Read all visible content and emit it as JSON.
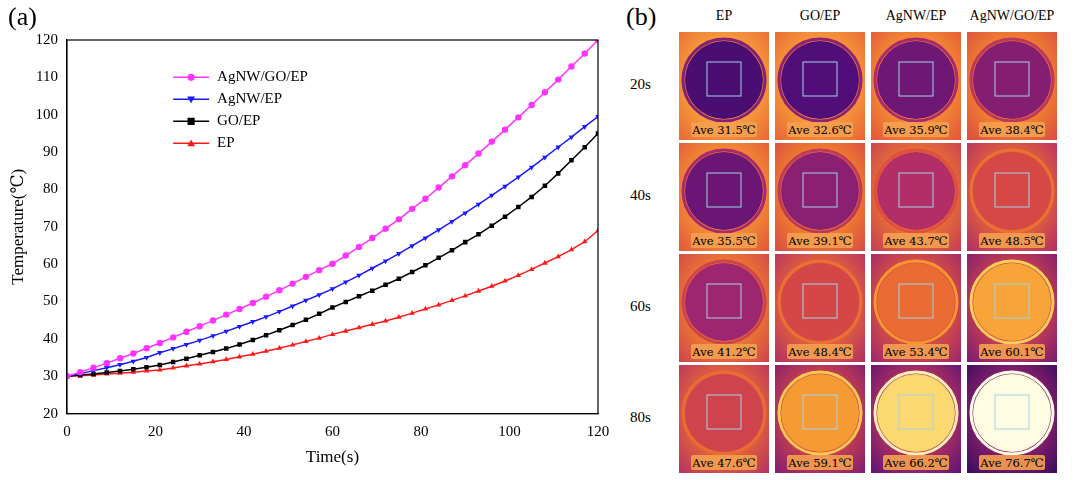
{
  "chart_data": {
    "type": "line",
    "panel": "(a)",
    "x_label": "Time(s)",
    "y_label": "Temperature(℃)",
    "x": [
      0,
      3,
      6,
      9,
      12,
      15,
      18,
      21,
      24,
      27,
      30,
      33,
      36,
      39,
      42,
      45,
      48,
      51,
      54,
      57,
      60,
      63,
      66,
      69,
      72,
      75,
      78,
      81,
      84,
      87,
      90,
      93,
      96,
      99,
      102,
      105,
      108,
      111,
      114,
      117,
      120
    ],
    "xlim": [
      0,
      120
    ],
    "xticks": [
      0,
      20,
      40,
      60,
      80,
      100,
      120
    ],
    "ylim": [
      20,
      120
    ],
    "yticks": [
      20,
      30,
      40,
      50,
      60,
      70,
      80,
      90,
      100,
      110,
      120
    ],
    "grid": false,
    "legend": "upper left",
    "series": [
      {
        "name": "AgNW/GO/EP",
        "color": "#ff33ff",
        "marker": "circle",
        "line_style": "solid",
        "values": [
          30.0,
          31.1,
          32.3,
          33.5,
          34.8,
          36.1,
          37.5,
          38.9,
          40.4,
          41.9,
          43.4,
          44.9,
          46.5,
          48.0,
          49.6,
          51.3,
          53.0,
          54.8,
          56.6,
          58.4,
          60.1,
          62.3,
          64.6,
          67.0,
          69.5,
          72.0,
          74.8,
          77.5,
          80.5,
          83.5,
          86.5,
          89.6,
          92.8,
          96.0,
          99.3,
          102.6,
          106.0,
          109.4,
          112.9,
          116.4,
          120.0
        ]
      },
      {
        "name": "AgNW/EP",
        "color": "#1a1aff",
        "marker": "triangle_down",
        "line_style": "solid",
        "values": [
          30.0,
          30.7,
          31.5,
          32.3,
          33.1,
          34.0,
          35.0,
          36.3,
          37.4,
          38.5,
          39.6,
          40.8,
          42.0,
          43.3,
          44.6,
          45.9,
          47.3,
          48.8,
          50.3,
          51.8,
          53.4,
          55.2,
          57.0,
          58.9,
          60.8,
          62.8,
          64.9,
          67.0,
          69.2,
          71.4,
          73.7,
          76.0,
          78.4,
          80.8,
          83.3,
          85.9,
          88.6,
          91.3,
          94.0,
          96.8,
          99.5
        ]
      },
      {
        "name": "GO/EP",
        "color": "#000000",
        "marker": "square",
        "line_style": "solid",
        "values": [
          30.0,
          30.3,
          30.6,
          31.0,
          31.4,
          31.9,
          32.4,
          33.0,
          33.8,
          34.7,
          35.6,
          36.5,
          37.4,
          38.5,
          39.7,
          41.0,
          42.3,
          43.7,
          45.1,
          46.7,
          48.4,
          49.9,
          51.4,
          52.9,
          54.5,
          56.1,
          57.9,
          59.7,
          61.7,
          63.7,
          65.9,
          68.0,
          70.3,
          72.7,
          75.3,
          78.0,
          81.0,
          84.3,
          87.8,
          91.3,
          95.0
        ]
      },
      {
        "name": "EP",
        "color": "#ff1a1a",
        "marker": "triangle_up",
        "line_style": "solid",
        "values": [
          30.0,
          30.1,
          30.3,
          30.6,
          30.8,
          31.1,
          31.4,
          31.7,
          32.2,
          32.8,
          33.3,
          33.9,
          34.5,
          35.2,
          35.9,
          36.7,
          37.5,
          38.4,
          39.3,
          40.2,
          41.2,
          42.1,
          43.0,
          43.9,
          44.8,
          45.8,
          46.9,
          48.0,
          49.1,
          50.3,
          51.5,
          52.8,
          54.1,
          55.5,
          57.0,
          58.6,
          60.3,
          62.0,
          63.9,
          66.0,
          69.0
        ]
      }
    ]
  },
  "thermal_images": {
    "panel": "(b)",
    "columns": [
      "EP",
      "GO/EP",
      "AgNW/EP",
      "AgNW/GO/EP"
    ],
    "rows": [
      "20s",
      "40s",
      "60s",
      "80s"
    ],
    "values": [
      [
        31.5,
        32.6,
        35.9,
        38.4
      ],
      [
        35.5,
        39.1,
        43.7,
        48.5
      ],
      [
        41.2,
        48.4,
        53.4,
        60.1
      ],
      [
        47.6,
        59.1,
        66.2,
        76.7
      ]
    ],
    "labels": [
      [
        "Ave 31.5℃",
        "Ave 32.6℃",
        "Ave 35.9℃",
        "Ave 38.4℃"
      ],
      [
        "Ave 35.5℃",
        "Ave 39.1℃",
        "Ave 43.7℃",
        "Ave 48.5℃"
      ],
      [
        "Ave 41.2℃",
        "Ave 48.4℃",
        "Ave 53.4℃",
        "Ave 60.1℃"
      ],
      [
        "Ave 47.6℃",
        "Ave 59.1℃",
        "Ave 66.2℃",
        "Ave 76.7℃"
      ]
    ]
  }
}
